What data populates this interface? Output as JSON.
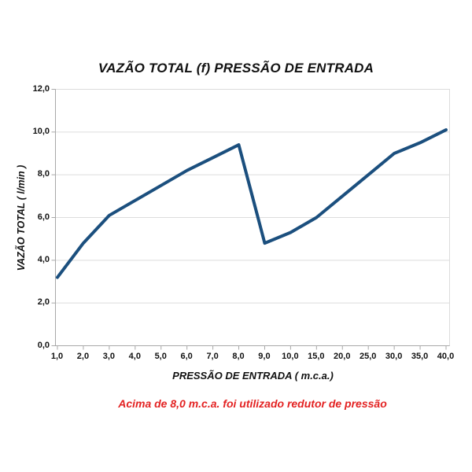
{
  "chart_data": {
    "type": "line",
    "title": "VAZÃO TOTAL (f) PRESSÃO DE ENTRADA",
    "xlabel": "PRESSÃO DE ENTRADA ( m.c.a.)",
    "ylabel": "VAZÃO TOTAL ( l/min )",
    "categories": [
      "1,0",
      "2,0",
      "3,0",
      "4,0",
      "5,0",
      "6,0",
      "7,0",
      "8,0",
      "9,0",
      "10,0",
      "15,0",
      "20,0",
      "25,0",
      "30,0",
      "35,0",
      "40,0"
    ],
    "values": [
      3.2,
      4.8,
      6.1,
      6.8,
      7.5,
      8.2,
      8.8,
      9.4,
      4.8,
      5.3,
      6.0,
      7.0,
      8.0,
      9.0,
      9.5,
      10.1
    ],
    "y_ticks": [
      "12,0",
      "10,0",
      "8,0",
      "6,0",
      "4,0",
      "2,0",
      "0,0"
    ],
    "ylim": [
      0,
      12
    ],
    "grid": "horizontal",
    "legend": "none",
    "line_color": "#1b4f7e",
    "grid_color": "#dcdcdc",
    "axis_color": "#a8a8a8",
    "note": "Acima de 8,0 m.c.a. foi utilizado redutor de pressão",
    "note_color": "#e32222"
  }
}
